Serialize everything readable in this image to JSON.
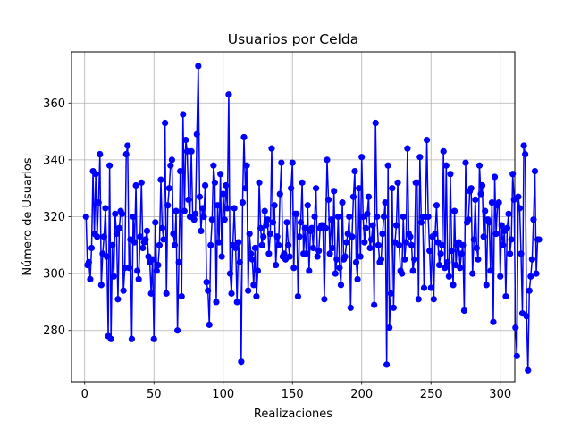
{
  "chart_data": {
    "type": "line",
    "title": "Usuarios por Celda",
    "xlabel": "Realizaciones",
    "ylabel": "Número de Usuarios",
    "xlim": [
      -9.5,
      310.5
    ],
    "ylim": [
      262,
      378
    ],
    "xticks": [
      0,
      50,
      100,
      150,
      200,
      250,
      300
    ],
    "yticks": [
      280,
      300,
      320,
      340,
      360
    ],
    "grid": true,
    "marker": "circle",
    "color": "#0000ff",
    "series": [
      {
        "values": [
          320,
          303,
          304,
          298,
          309,
          336,
          314,
          335,
          313,
          325,
          342,
          296,
          307,
          313,
          323,
          306,
          278,
          338,
          277,
          310,
          299,
          321,
          314,
          291,
          316,
          322,
          321,
          294,
          302,
          342,
          345,
          302,
          312,
          277,
          320,
          311,
          331,
          301,
          298,
          313,
          332,
          309,
          311,
          312,
          315,
          306,
          304,
          293,
          305,
          277,
          318,
          301,
          303,
          310,
          333,
          316,
          312,
          353,
          293,
          324,
          330,
          338,
          340,
          314,
          310,
          322,
          280,
          304,
          336,
          292,
          356,
          322,
          347,
          343,
          326,
          320,
          343,
          320,
          319,
          321,
          349,
          373,
          327,
          315,
          323,
          320,
          331,
          297,
          294,
          282,
          310,
          319,
          338,
          332,
          290,
          324,
          311,
          335,
          306,
          328,
          319,
          331,
          323,
          363,
          300,
          293,
          310,
          323,
          309,
          290,
          311,
          304,
          269,
          325,
          348,
          330,
          338,
          294,
          314,
          307,
          305,
          296,
          309,
          292,
          301,
          332,
          316,
          310,
          313,
          322,
          317,
          319,
          307,
          314,
          344,
          318,
          324,
          303,
          313,
          310,
          328,
          339,
          306,
          307,
          305,
          318,
          310,
          306,
          330,
          339,
          302,
          321,
          321,
          292,
          313,
          318,
          332,
          307,
          316,
          307,
          324,
          301,
          315,
          316,
          309,
          320,
          330,
          306,
          308,
          316,
          317,
          317,
          291,
          316,
          340,
          326,
          307,
          319,
          309,
          329,
          300,
          305,
          320,
          302,
          296,
          325,
          305,
          306,
          311,
          314,
          320,
          288,
          313,
          327,
          336,
          304,
          298,
          330,
          306,
          341,
          320,
          311,
          316,
          321,
          327,
          309,
          312,
          317,
          289,
          353,
          320,
          310,
          304,
          305,
          314,
          320,
          325,
          268,
          338,
          281,
          293,
          330,
          288,
          311,
          317,
          332,
          310,
          301,
          300,
          320,
          305,
          311,
          344,
          314,
          313,
          310,
          301,
          305,
          332,
          332,
          291,
          341,
          318,
          320,
          295,
          320,
          347,
          320,
          308,
          295,
          313,
          291,
          314,
          324,
          311,
          303,
          307,
          310,
          343,
          302,
          338,
          304,
          299,
          335,
          308,
          296,
          322,
          303,
          310,
          311,
          302,
          307,
          310,
          287,
          339,
          318,
          319,
          329,
          330,
          300,
          312,
          326,
          309,
          305,
          338,
          328,
          331,
          313,
          322,
          296,
          319,
          318,
          301,
          325,
          283,
          334,
          314,
          324,
          325,
          299,
          317,
          310,
          315,
          292,
          316,
          321,
          307,
          312,
          335,
          326,
          281,
          271,
          327,
          323,
          307,
          286,
          345,
          342,
          285,
          266,
          294,
          299,
          305,
          319,
          336,
          300,
          312,
          312
        ]
      }
    ]
  }
}
